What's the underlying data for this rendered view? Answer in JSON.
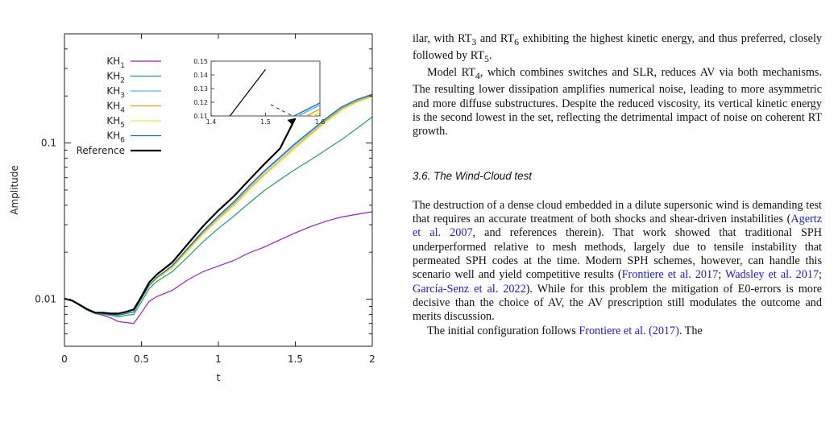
{
  "figure": {
    "chart_data": {
      "type": "line",
      "xlabel": "t",
      "ylabel": "Amplitude",
      "xlim": [
        0,
        2
      ],
      "ylim": [
        0.005,
        0.5
      ],
      "y_scale": "log",
      "x_ticks": [
        0,
        0.5,
        1,
        1.5,
        2
      ],
      "x_tick_labels": [
        "0",
        "0.5",
        "1",
        "1.5",
        "2"
      ],
      "y_ticks": [
        0.01,
        0.1
      ],
      "y_tick_labels": [
        "0.01",
        "0.1"
      ],
      "legend_position": "top-left",
      "series": [
        {
          "name": "KH",
          "sub": "1",
          "color": "#9b1fc7",
          "x": [
            0,
            0.05,
            0.1,
            0.15,
            0.2,
            0.25,
            0.3,
            0.35,
            0.4,
            0.45,
            0.5,
            0.55,
            0.6,
            0.7,
            0.8,
            0.9,
            1.0,
            1.1,
            1.2,
            1.3,
            1.4,
            1.5,
            1.6,
            1.7,
            1.8,
            1.9,
            2.0
          ],
          "y": [
            0.0101,
            0.0098,
            0.0091,
            0.0085,
            0.0081,
            0.0079,
            0.0076,
            0.0072,
            0.0071,
            0.007,
            0.0082,
            0.0097,
            0.0104,
            0.0114,
            0.0133,
            0.015,
            0.0163,
            0.0177,
            0.0198,
            0.0216,
            0.024,
            0.0266,
            0.0292,
            0.0316,
            0.0336,
            0.035,
            0.0363
          ]
        },
        {
          "name": "KH",
          "sub": "2",
          "color": "#1f9e6f",
          "x": [
            0,
            0.05,
            0.1,
            0.15,
            0.2,
            0.25,
            0.3,
            0.35,
            0.4,
            0.45,
            0.5,
            0.55,
            0.6,
            0.7,
            0.8,
            0.9,
            1.0,
            1.1,
            1.2,
            1.3,
            1.4,
            1.5,
            1.6,
            1.7,
            1.8,
            1.9,
            2.0
          ],
          "y": [
            0.0101,
            0.0098,
            0.0091,
            0.0085,
            0.0081,
            0.008,
            0.0079,
            0.0077,
            0.0079,
            0.008,
            0.0096,
            0.0117,
            0.013,
            0.015,
            0.0186,
            0.0233,
            0.0284,
            0.034,
            0.0413,
            0.0497,
            0.0583,
            0.0678,
            0.078,
            0.0905,
            0.105,
            0.124,
            0.147
          ]
        },
        {
          "name": "KH",
          "sub": "3",
          "color": "#5ab4e5",
          "x": [
            0,
            0.05,
            0.1,
            0.15,
            0.2,
            0.25,
            0.3,
            0.35,
            0.4,
            0.45,
            0.5,
            0.55,
            0.6,
            0.7,
            0.8,
            0.9,
            1.0,
            1.1,
            1.2,
            1.3,
            1.4,
            1.5,
            1.6,
            1.7,
            1.8,
            1.9,
            2.0
          ],
          "y": [
            0.0101,
            0.0098,
            0.0092,
            0.0086,
            0.0082,
            0.0081,
            0.008,
            0.0079,
            0.0081,
            0.0083,
            0.01,
            0.0122,
            0.0137,
            0.0163,
            0.021,
            0.027,
            0.0337,
            0.0415,
            0.0525,
            0.0655,
            0.08,
            0.098,
            0.118,
            0.142,
            0.168,
            0.188,
            0.203
          ]
        },
        {
          "name": "KH",
          "sub": "4",
          "color": "#e3a21a",
          "x": [
            0,
            0.05,
            0.1,
            0.15,
            0.2,
            0.25,
            0.3,
            0.35,
            0.4,
            0.45,
            0.5,
            0.55,
            0.6,
            0.7,
            0.8,
            0.9,
            1.0,
            1.1,
            1.2,
            1.3,
            1.4,
            1.5,
            1.6,
            1.7,
            1.8,
            1.9,
            2.0
          ],
          "y": [
            0.0101,
            0.0098,
            0.0092,
            0.0086,
            0.0082,
            0.0081,
            0.008,
            0.0079,
            0.0081,
            0.0083,
            0.01,
            0.0122,
            0.0136,
            0.0161,
            0.0207,
            0.0265,
            0.033,
            0.0405,
            0.051,
            0.0635,
            0.0775,
            0.095,
            0.115,
            0.139,
            0.165,
            0.185,
            0.2
          ]
        },
        {
          "name": "KH",
          "sub": "5",
          "color": "#f0e442",
          "x": [
            0,
            0.05,
            0.1,
            0.15,
            0.2,
            0.25,
            0.3,
            0.35,
            0.4,
            0.45,
            0.5,
            0.55,
            0.6,
            0.7,
            0.8,
            0.9,
            1.0,
            1.1,
            1.2,
            1.3,
            1.4,
            1.5,
            1.6,
            1.7,
            1.8,
            1.9,
            2.0
          ],
          "y": [
            0.0101,
            0.0098,
            0.0092,
            0.0086,
            0.0082,
            0.0081,
            0.008,
            0.0079,
            0.0081,
            0.0083,
            0.01,
            0.0121,
            0.0135,
            0.0159,
            0.0203,
            0.0259,
            0.0322,
            0.0395,
            0.0497,
            0.0618,
            0.0755,
            0.0925,
            0.1125,
            0.136,
            0.162,
            0.182,
            0.198
          ]
        },
        {
          "name": "KH",
          "sub": "6",
          "color": "#1a6fb0",
          "x": [
            0,
            0.05,
            0.1,
            0.15,
            0.2,
            0.25,
            0.3,
            0.35,
            0.4,
            0.45,
            0.5,
            0.55,
            0.6,
            0.7,
            0.8,
            0.9,
            1.0,
            1.1,
            1.2,
            1.3,
            1.4,
            1.5,
            1.6,
            1.7,
            1.8,
            1.9,
            2.0
          ],
          "y": [
            0.0101,
            0.0098,
            0.0092,
            0.0086,
            0.0082,
            0.0081,
            0.008,
            0.0079,
            0.0081,
            0.0083,
            0.0101,
            0.0123,
            0.0138,
            0.0164,
            0.0212,
            0.0273,
            0.0341,
            0.042,
            0.0532,
            0.0665,
            0.0812,
            0.0995,
            0.1195,
            0.144,
            0.17,
            0.19,
            0.205
          ]
        },
        {
          "name": "Reference",
          "sub": "",
          "color": "#000000",
          "x": [
            0,
            0.05,
            0.1,
            0.15,
            0.2,
            0.25,
            0.3,
            0.35,
            0.4,
            0.45,
            0.5,
            0.55,
            0.6,
            0.7,
            0.8,
            0.9,
            1.0,
            1.1,
            1.2,
            1.3,
            1.4,
            1.5
          ],
          "y": [
            0.0101,
            0.0098,
            0.0092,
            0.0086,
            0.0082,
            0.0082,
            0.0081,
            0.0081,
            0.0083,
            0.0086,
            0.0104,
            0.0128,
            0.0144,
            0.0172,
            0.0225,
            0.0293,
            0.037,
            0.0455,
            0.058,
            0.0735,
            0.092,
            0.144
          ]
        }
      ],
      "inset": {
        "xlim": [
          1.4,
          1.6
        ],
        "ylim": [
          0.11,
          0.15
        ],
        "x_ticks": [
          1.4,
          1.5,
          1.6
        ],
        "x_tick_labels": [
          "1.4",
          "1.5",
          "1.6"
        ],
        "y_ticks": [
          0.11,
          0.12,
          0.13,
          0.14,
          0.15
        ],
        "y_tick_labels": [
          "0.11",
          "0.12",
          "0.13",
          "0.14",
          "0.15"
        ]
      }
    }
  },
  "text": {
    "p1": {
      "a": "ilar, with RT",
      "a_sub": "3",
      "b": " and RT",
      "b_sub": "6",
      "c": " exhibiting the highest kinetic energy, and thus preferred, closely followed by RT",
      "c_sub": "5",
      "d": "."
    },
    "p2": {
      "a": "Model RT",
      "a_sub": "4",
      "b": ", which combines switches and SLR, reduces AV via both mechanisms. The resulting lower dissipation amplifies numerical noise, leading to more asymmetric and more diffuse substructures. Despite the reduced viscosity, its vertical kinetic energy is the second lowest in the set, reflecting the detrimental impact of noise on coherent RT growth."
    },
    "section_title": "3.6. The Wind-Cloud test",
    "p3": {
      "a": "The destruction of a dense cloud embedded in a dilute supersonic wind is demanding test that requires an accurate treatment of both shocks and shear-driven instabilities (",
      "cite1": "Agertz et al. 2007",
      "b": ", and references therein). That work showed that traditional SPH underperformed relative to mesh methods, largely due to tensile instability that permeated SPH codes at the time. Modern SPH schemes, however, can handle this scenario well and yield competitive results (",
      "cite2": "Frontiere et al. 2017",
      "c": "; ",
      "cite3": "Wadsley et al. 2017",
      "d": "; ",
      "cite4": "García-Senz et al. 2022",
      "e": "). While for this problem the mitigation of E0-errors is more decisive than the choice of AV, the AV prescription still modulates the outcome and merits discussion."
    },
    "p4": {
      "a": "The initial configuration follows ",
      "cite": "Frontiere et al. (2017)",
      "b": ". The"
    }
  }
}
